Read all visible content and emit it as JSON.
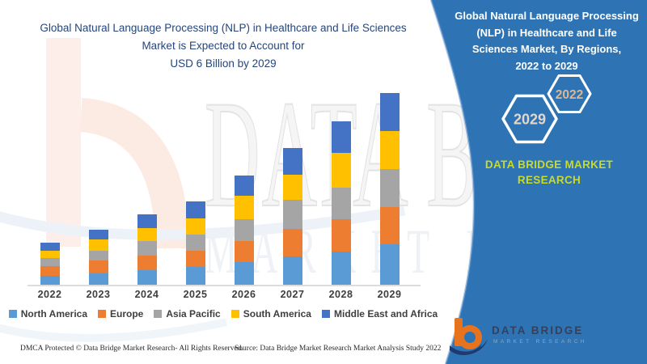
{
  "header": {
    "title_lines": [
      "Global Natural Language Processing (NLP) in Healthcare and Life Sciences",
      "Market is Expected to Account for",
      "USD 6 Billion by 2029"
    ]
  },
  "chart_data": {
    "type": "bar",
    "stacked": true,
    "title": "Global Natural Language Processing (NLP) in Healthcare and Life Sciences Market is Expected to Account for USD 6 Billion by 2029",
    "unit": "USD Billion",
    "categories": [
      "2022",
      "2023",
      "2024",
      "2025",
      "2026",
      "2027",
      "2028",
      "2029"
    ],
    "series": [
      {
        "name": "North America",
        "color": "#5B9BD5",
        "values": [
          0.28,
          0.36,
          0.46,
          0.55,
          0.7,
          0.88,
          1.05,
          1.26
        ]
      },
      {
        "name": "Europe",
        "color": "#ED7D31",
        "values": [
          0.31,
          0.41,
          0.44,
          0.52,
          0.67,
          0.86,
          1.01,
          1.18
        ]
      },
      {
        "name": "Asia Pacific",
        "color": "#A5A5A5",
        "values": [
          0.25,
          0.29,
          0.47,
          0.49,
          0.69,
          0.91,
          0.97,
          1.18
        ]
      },
      {
        "name": "South America",
        "color": "#FFC000",
        "values": [
          0.23,
          0.36,
          0.4,
          0.51,
          0.72,
          0.8,
          1.1,
          1.18
        ]
      },
      {
        "name": "Middle East and Africa",
        "color": "#4472C4",
        "values": [
          0.24,
          0.31,
          0.42,
          0.53,
          0.65,
          0.83,
          0.99,
          1.2
        ]
      }
    ],
    "totals": [
      1.31,
      1.73,
      2.19,
      2.6,
      3.43,
      4.28,
      5.12,
      6.0
    ],
    "ylim": [
      0,
      6.3
    ],
    "grid": false,
    "legend_position": "bottom",
    "xlabel": "",
    "ylabel": ""
  },
  "right_panel": {
    "background_color": "#2E74B5",
    "title_lines": [
      "Global Natural Language Processing",
      "(NLP) in Healthcare and Life",
      "Sciences Market, By Regions,",
      "2022 to 2029"
    ],
    "hexagon_start_year": "2022",
    "hexagon_end_year": "2029",
    "brand_line1": "DATA BRIDGE MARKET",
    "brand_line2": "RESEARCH",
    "brand_color": "#C8DA2B"
  },
  "watermark": {
    "row1": "DATA BRIDGE",
    "row2": "MARKET RESEARCH"
  },
  "logo": {
    "name": "DATA BRIDGE",
    "subtitle": "MARKET RESEARCH"
  },
  "footer": {
    "dmca": "DMCA Protected © Data Bridge Market Research- All Rights Reserved.",
    "source": "Source: Data Bridge Market Research Market Analysis Study 2022"
  }
}
